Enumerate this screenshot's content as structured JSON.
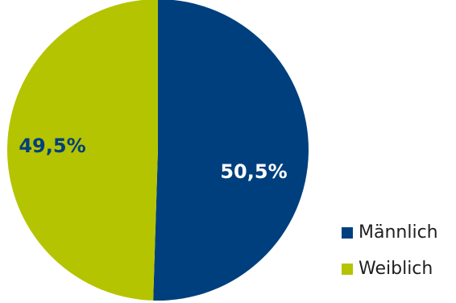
{
  "chart_data": {
    "type": "pie",
    "slices": [
      {
        "name": "Männlich",
        "value": 50.5,
        "label": "50,5%",
        "color": "#003f7d",
        "label_color": "#ffffff"
      },
      {
        "name": "Weiblich",
        "value": 49.5,
        "label": "49,5%",
        "color": "#b5c400",
        "label_color": "#003f7d"
      }
    ],
    "start_angle_deg": 0,
    "direction": "clockwise",
    "legend_position": "bottom-right"
  }
}
